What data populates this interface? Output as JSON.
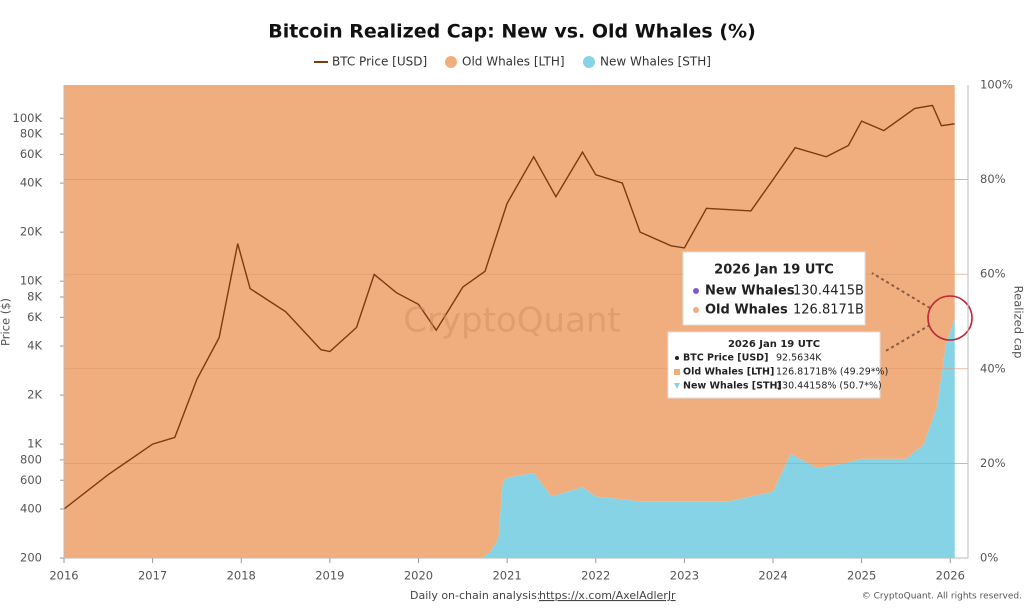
{
  "chart_data": {
    "type": "combo",
    "title": "Bitcoin Realized Cap: New vs. Old Whales (%)",
    "y_label": "Price ($)",
    "y2_label": "Realized cap",
    "log_scale_y": true,
    "xlim": [
      2016,
      2026.2
    ],
    "xticks": [
      2016,
      2017,
      2018,
      2019,
      2020,
      2021,
      2022,
      2023,
      2024,
      2025,
      2026
    ],
    "ylim": [
      200,
      160000
    ],
    "yticks": [
      200,
      400,
      600,
      800,
      {
        "value": 1000,
        "label": "1K"
      },
      {
        "value": 2000,
        "label": "2K"
      },
      {
        "value": 4000,
        "label": "4K"
      },
      {
        "value": 6000,
        "label": "6K"
      },
      {
        "value": 8000,
        "label": "8K"
      },
      {
        "value": 10000,
        "label": "10K"
      },
      {
        "value": 20000,
        "label": "20K"
      },
      {
        "value": 40000,
        "label": "40K"
      },
      {
        "value": 60000,
        "label": "60K"
      },
      {
        "value": 80000,
        "label": "80K"
      },
      {
        "value": 100000,
        "label": "100K"
      }
    ],
    "y2lim": [
      0,
      100
    ],
    "y2ticks": [
      {
        "value": 0,
        "label": "0%"
      },
      {
        "value": 20,
        "label": "20%"
      },
      {
        "value": 40,
        "label": "40%"
      },
      {
        "value": 60,
        "label": "60%"
      },
      {
        "value": 80,
        "label": "80%"
      },
      {
        "value": 100,
        "label": "100%"
      }
    ],
    "series": [
      {
        "name": "BTC Price [USD]",
        "type": "line",
        "color": "#7a3b10",
        "x": [
          2016.0,
          2016.5,
          2017.0,
          2017.25,
          2017.5,
          2017.75,
          2017.96,
          2018.1,
          2018.5,
          2018.9,
          2019.0,
          2019.3,
          2019.5,
          2019.75,
          2020.0,
          2020.2,
          2020.5,
          2020.75,
          2021.0,
          2021.3,
          2021.55,
          2021.85,
          2022.0,
          2022.3,
          2022.5,
          2022.85,
          2023.0,
          2023.25,
          2023.75,
          2024.0,
          2024.25,
          2024.6,
          2024.85,
          2025.0,
          2025.25,
          2025.6,
          2025.8,
          2025.9,
          2026.05
        ],
        "values": [
          400,
          650,
          1000,
          1100,
          2500,
          4500,
          17000,
          9000,
          6500,
          3800,
          3700,
          5200,
          11000,
          8500,
          7200,
          5000,
          9200,
          11500,
          30000,
          58000,
          33000,
          62000,
          45000,
          40000,
          20000,
          16500,
          16000,
          28000,
          27000,
          42000,
          66000,
          58000,
          68000,
          96000,
          84000,
          115000,
          120000,
          90000,
          92500
        ]
      },
      {
        "name": "Old Whales [LTH]",
        "type": "area",
        "color": "#f0ae7e",
        "axis": "y2",
        "x": [
          2016,
          2020.7,
          2020.8,
          2020.9,
          2020.95,
          2021.0,
          2021.3,
          2021.5,
          2021.85,
          2022.0,
          2022.5,
          2023.0,
          2023.5,
          2024.0,
          2024.2,
          2024.5,
          2024.8,
          2025.0,
          2025.5,
          2025.7,
          2025.85,
          2025.95,
          2026.05
        ],
        "values": [
          100,
          100,
          99,
          96,
          84,
          83,
          82,
          87,
          85,
          87,
          88,
          88,
          88,
          86,
          78,
          81,
          80,
          79,
          79,
          76,
          68,
          55,
          49.29
        ]
      },
      {
        "name": "New Whales [STH]",
        "type": "area",
        "color": "#86d3e6",
        "axis": "y2",
        "x": [
          2016,
          2020.7,
          2020.8,
          2020.9,
          2020.95,
          2021.0,
          2021.3,
          2021.5,
          2021.85,
          2022.0,
          2022.5,
          2023.0,
          2023.5,
          2024.0,
          2024.2,
          2024.5,
          2024.8,
          2025.0,
          2025.5,
          2025.7,
          2025.85,
          2025.95,
          2026.05
        ],
        "values": [
          0,
          0,
          1,
          4,
          16,
          17,
          18,
          13,
          15,
          13,
          12,
          12,
          12,
          14,
          22,
          19,
          20,
          21,
          21,
          24,
          32,
          45,
          50.7
        ]
      }
    ],
    "watermark": "CryptoQuant",
    "tooltips": [
      {
        "title": "2026 Jan 19 UTC",
        "rows": [
          {
            "label": "New Whales",
            "value": "130.4415B"
          },
          {
            "label": "Old Whales",
            "value": "126.8171B"
          }
        ]
      },
      {
        "title": "2026 Jan 19 UTC",
        "rows": [
          {
            "label": "BTC Price [USD]",
            "value": "92.5634K"
          },
          {
            "label": "Old Whales [LTH]",
            "value": "126.8171B% (49.29*%)"
          },
          {
            "label": "New Whales [STH]",
            "value": "130.44158% (50.7*%)"
          }
        ]
      }
    ],
    "footer": "Daily on-chain analysis:",
    "footer_link": "https://x.com/AxelAdlerJr",
    "copyright": "© CryptoQuant. All rights reserved."
  }
}
